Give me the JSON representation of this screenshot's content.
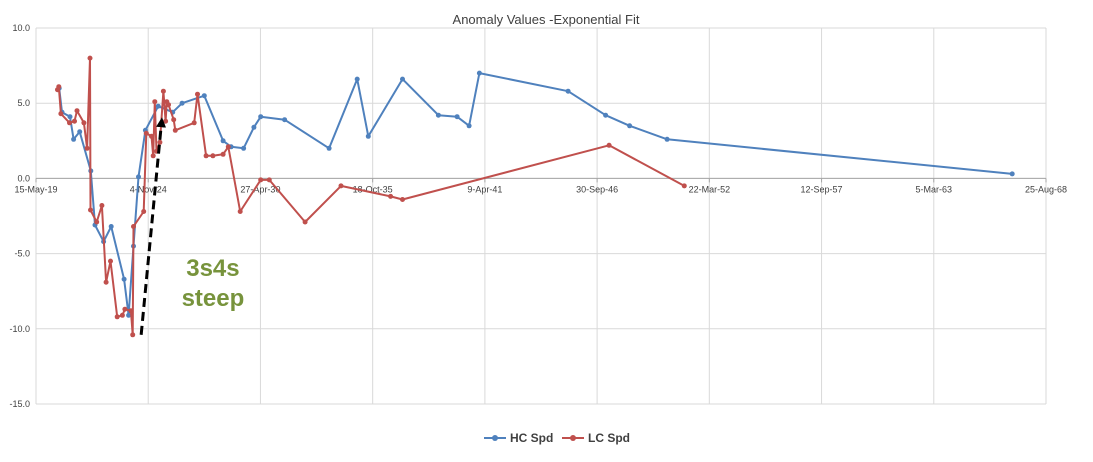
{
  "chart_data": {
    "type": "line",
    "title": "Anomaly Values -Exponential Fit",
    "xlabel": "",
    "ylabel": "",
    "ylim": [
      -15,
      10
    ],
    "yticks": [
      10.0,
      5.0,
      0.0,
      -5.0,
      -10.0,
      -15.0
    ],
    "ytick_labels": [
      "10.0",
      "5.0",
      "0.0",
      "-5.0",
      "-10.0",
      "-15.0"
    ],
    "xlim": [
      "1919-05-15",
      "1968-08-25"
    ],
    "xtick_labels": [
      "15-May-19",
      "4-Nov-24",
      "27-Apr-30",
      "18-Oct-35",
      "9-Apr-41",
      "30-Sep-46",
      "22-Mar-52",
      "12-Sep-57",
      "5-Mar-63",
      "25-Aug-68"
    ],
    "xtick_dates": [
      "1919-05-15",
      "1924-11-04",
      "1930-04-27",
      "1935-10-18",
      "1941-04-09",
      "1946-09-30",
      "1952-03-22",
      "1957-09-12",
      "1963-03-05",
      "1968-08-25"
    ],
    "grid": true,
    "legend_position": "bottom",
    "series": [
      {
        "name": "HC Spd",
        "color": "#4f81bd",
        "points": [
          [
            "1920-07-01",
            6.0
          ],
          [
            "1920-08-20",
            4.4
          ],
          [
            "1921-01-10",
            4.1
          ],
          [
            "1921-03-15",
            2.6
          ],
          [
            "1921-07-01",
            3.1
          ],
          [
            "1922-01-15",
            0.5
          ],
          [
            "1922-04-01",
            -3.1
          ],
          [
            "1922-09-01",
            -4.2
          ],
          [
            "1923-01-15",
            -3.2
          ],
          [
            "1923-09-01",
            -6.7
          ],
          [
            "1923-11-20",
            -9.1
          ],
          [
            "1924-02-15",
            -4.5
          ],
          [
            "1924-05-15",
            0.1
          ],
          [
            "1924-09-15",
            3.2
          ],
          [
            "1925-05-01",
            4.8
          ],
          [
            "1926-01-15",
            4.4
          ],
          [
            "1926-07-01",
            5.0
          ],
          [
            "1927-08-01",
            5.5
          ],
          [
            "1928-07-01",
            2.5
          ],
          [
            "1928-11-20",
            2.1
          ],
          [
            "1929-07-01",
            2.0
          ],
          [
            "1930-01-01",
            3.4
          ],
          [
            "1930-05-01",
            4.1
          ],
          [
            "1931-07-01",
            3.9
          ],
          [
            "1933-09-01",
            2.0
          ],
          [
            "1935-01-15",
            6.6
          ],
          [
            "1935-08-01",
            2.8
          ],
          [
            "1937-04-01",
            6.6
          ],
          [
            "1939-01-01",
            4.2
          ],
          [
            "1939-12-01",
            4.1
          ],
          [
            "1940-07-01",
            3.5
          ],
          [
            "1941-01-01",
            7.0
          ],
          [
            "1945-05-01",
            5.8
          ],
          [
            "1947-03-01",
            4.2
          ],
          [
            "1948-05-01",
            3.5
          ],
          [
            "1950-03-01",
            2.6
          ],
          [
            "1967-01-01",
            0.3
          ]
        ]
      },
      {
        "name": "LC Spd",
        "color": "#c0504d",
        "points": [
          [
            "1920-06-01",
            5.9
          ],
          [
            "1920-06-25",
            6.1
          ],
          [
            "1920-08-01",
            4.3
          ],
          [
            "1921-01-01",
            3.7
          ],
          [
            "1921-04-01",
            3.8
          ],
          [
            "1921-05-15",
            4.5
          ],
          [
            "1921-09-15",
            3.7
          ],
          [
            "1921-11-10",
            2.0
          ],
          [
            "1922-01-01",
            8.0
          ],
          [
            "1922-01-10",
            -2.1
          ],
          [
            "1922-05-01",
            -2.9
          ],
          [
            "1922-08-01",
            -1.8
          ],
          [
            "1922-10-15",
            -6.9
          ],
          [
            "1923-01-01",
            -5.5
          ],
          [
            "1923-05-01",
            -9.2
          ],
          [
            "1923-08-01",
            -9.1
          ],
          [
            "1923-09-15",
            -8.7
          ],
          [
            "1924-01-01",
            -8.8
          ],
          [
            "1924-02-01",
            -10.4
          ],
          [
            "1924-02-15",
            -3.2
          ],
          [
            "1924-08-15",
            -2.2
          ],
          [
            "1924-10-01",
            3.0
          ],
          [
            "1925-01-01",
            2.8
          ],
          [
            "1925-02-01",
            1.5
          ],
          [
            "1925-03-01",
            5.1
          ],
          [
            "1925-04-01",
            1.8
          ],
          [
            "1925-06-01",
            2.4
          ],
          [
            "1925-08-01",
            5.8
          ],
          [
            "1925-09-10",
            3.8
          ],
          [
            "1925-10-01",
            5.1
          ],
          [
            "1925-11-01",
            4.9
          ],
          [
            "1926-02-01",
            3.9
          ],
          [
            "1926-03-01",
            3.2
          ],
          [
            "1927-02-01",
            3.7
          ],
          [
            "1927-04-01",
            5.6
          ],
          [
            "1927-09-01",
            1.5
          ],
          [
            "1928-01-01",
            1.5
          ],
          [
            "1928-07-01",
            1.6
          ],
          [
            "1928-10-01",
            2.1
          ],
          [
            "1929-05-01",
            -2.2
          ],
          [
            "1930-05-01",
            -0.1
          ],
          [
            "1930-10-01",
            -0.1
          ],
          [
            "1932-07-01",
            -2.9
          ],
          [
            "1934-04-01",
            -0.5
          ],
          [
            "1936-09-01",
            -1.2
          ],
          [
            "1937-04-01",
            -1.4
          ],
          [
            "1947-05-01",
            2.2
          ],
          [
            "1951-01-01",
            -0.5
          ]
        ]
      }
    ],
    "annotations": [
      {
        "type": "arrow",
        "style": "dashed",
        "color": "#000000",
        "from": [
          "1924-07-01",
          -10.4
        ],
        "to": [
          "1925-07-01",
          3.8
        ]
      },
      {
        "type": "text",
        "lines": [
          "3s4s",
          "steep"
        ],
        "color": "#77933c",
        "at": [
          "1928-01-01",
          -6.5
        ]
      }
    ]
  }
}
